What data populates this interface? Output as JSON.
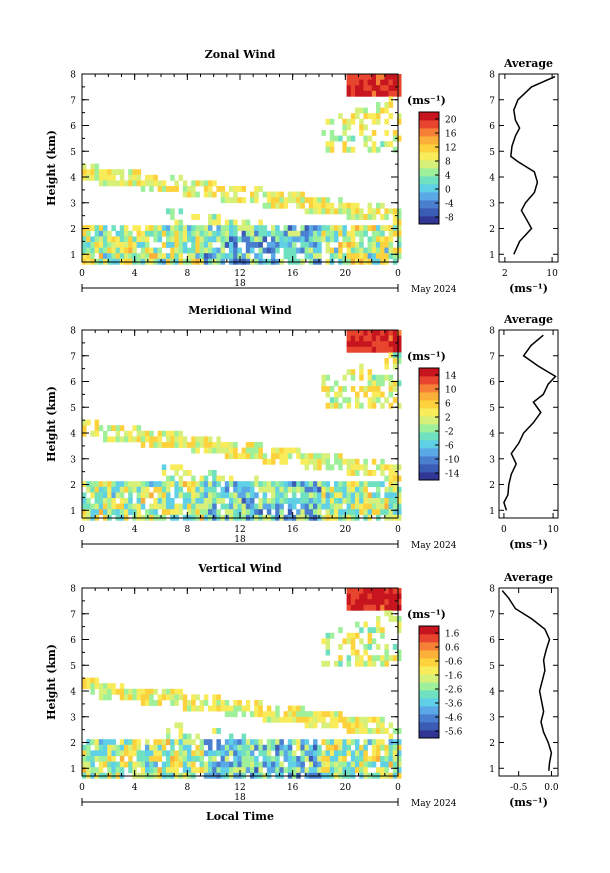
{
  "figure": {
    "date_label": "May 2024",
    "xlabel": "Local Time"
  },
  "colors": {
    "cmap": [
      "#313695",
      "#3a5cb5",
      "#4a7fd0",
      "#5aa9e6",
      "#5fd0e6",
      "#6fe0c0",
      "#9ef09a",
      "#d6f07a",
      "#f8ec5a",
      "#fdd23c",
      "#fbb03a",
      "#f68035",
      "#e8452e",
      "#c7151f"
    ]
  },
  "chart_data": [
    {
      "type": "heatmap",
      "title": "Zonal Wind",
      "xlabel": "",
      "ylabel": "Height (km)",
      "x_ticks": [
        "0",
        "4",
        "8",
        "12",
        "16",
        "20",
        "0"
      ],
      "day_label": "18",
      "y_ticks": [
        "1",
        "2",
        "3",
        "4",
        "5",
        "6",
        "7",
        "8"
      ],
      "ylim": [
        0.7,
        8
      ],
      "colorbar": {
        "unit": "(ms⁻¹)",
        "ticks": [
          "-8",
          "-4",
          "0",
          "4",
          "8",
          "12",
          "16",
          "20"
        ],
        "range": [
          -10,
          22
        ]
      },
      "average": {
        "title": "Average",
        "xlabel": "(ms⁻¹)",
        "x_ticks": [
          "2",
          "10"
        ],
        "xlim": [
          1,
          11
        ],
        "height": [
          1.0,
          1.5,
          2.0,
          2.3,
          2.7,
          3.0,
          3.4,
          3.8,
          4.2,
          4.6,
          4.8,
          5.2,
          5.6,
          5.9,
          6.2,
          6.6,
          7.0,
          7.5,
          7.9
        ],
        "values": [
          3.5,
          4.5,
          6.5,
          5.8,
          4.8,
          5.5,
          7.0,
          7.5,
          7.0,
          4.2,
          3.0,
          3.2,
          3.8,
          4.5,
          3.8,
          3.5,
          4.2,
          6.5,
          10.5
        ]
      }
    },
    {
      "type": "heatmap",
      "title": "Meridional Wind",
      "xlabel": "",
      "ylabel": "Height (km)",
      "x_ticks": [
        "0",
        "4",
        "8",
        "12",
        "16",
        "20",
        "0"
      ],
      "day_label": "18",
      "y_ticks": [
        "1",
        "2",
        "3",
        "4",
        "5",
        "6",
        "7",
        "8"
      ],
      "ylim": [
        0.7,
        8
      ],
      "colorbar": {
        "unit": "(ms⁻¹)",
        "ticks": [
          "-14",
          "-10",
          "-6",
          "-2",
          "2",
          "6",
          "10",
          "14"
        ],
        "range": [
          -16,
          16
        ]
      },
      "average": {
        "title": "Average",
        "xlabel": "(ms⁻¹)",
        "x_ticks": [
          "0",
          "10"
        ],
        "xlim": [
          -1,
          11
        ],
        "height": [
          1.0,
          1.3,
          1.6,
          2.0,
          2.4,
          2.8,
          3.2,
          3.6,
          4.0,
          4.4,
          4.8,
          5.2,
          5.5,
          5.9,
          6.2,
          6.6,
          7.0,
          7.4,
          7.8
        ],
        "values": [
          0.5,
          0.0,
          0.8,
          1.0,
          1.5,
          2.5,
          1.5,
          3.0,
          4.0,
          6.0,
          7.5,
          6.0,
          8.0,
          9.0,
          10.5,
          7.0,
          4.0,
          5.5,
          8.0
        ]
      }
    },
    {
      "type": "heatmap",
      "title": "Vertical Wind",
      "xlabel": "Local Time",
      "ylabel": "Height (km)",
      "x_ticks": [
        "0",
        "4",
        "8",
        "12",
        "16",
        "20",
        "0"
      ],
      "day_label": "18",
      "y_ticks": [
        "1",
        "2",
        "3",
        "4",
        "5",
        "6",
        "7",
        "8"
      ],
      "ylim": [
        0.7,
        8
      ],
      "colorbar": {
        "unit": "(ms⁻¹)",
        "ticks": [
          "-5.6",
          "-4.6",
          "-3.6",
          "-2.6",
          "-1.6",
          "-0.6",
          "0.6",
          "1.6"
        ],
        "range": [
          -6,
          2
        ]
      },
      "average": {
        "title": "Average",
        "xlabel": "(ms⁻¹)",
        "x_ticks": [
          "-0.5",
          "0.0"
        ],
        "xlim": [
          -0.8,
          0.1
        ],
        "height": [
          0.9,
          1.2,
          1.6,
          2.0,
          2.4,
          2.8,
          3.2,
          3.6,
          4.0,
          4.4,
          4.8,
          5.2,
          5.6,
          6.0,
          6.4,
          6.8,
          7.2,
          7.6,
          7.9
        ],
        "values": [
          -0.04,
          -0.03,
          0.0,
          -0.05,
          -0.12,
          -0.16,
          -0.12,
          -0.15,
          -0.18,
          -0.14,
          -0.1,
          -0.12,
          -0.08,
          -0.03,
          -0.1,
          -0.3,
          -0.55,
          -0.65,
          -0.75
        ]
      }
    }
  ]
}
